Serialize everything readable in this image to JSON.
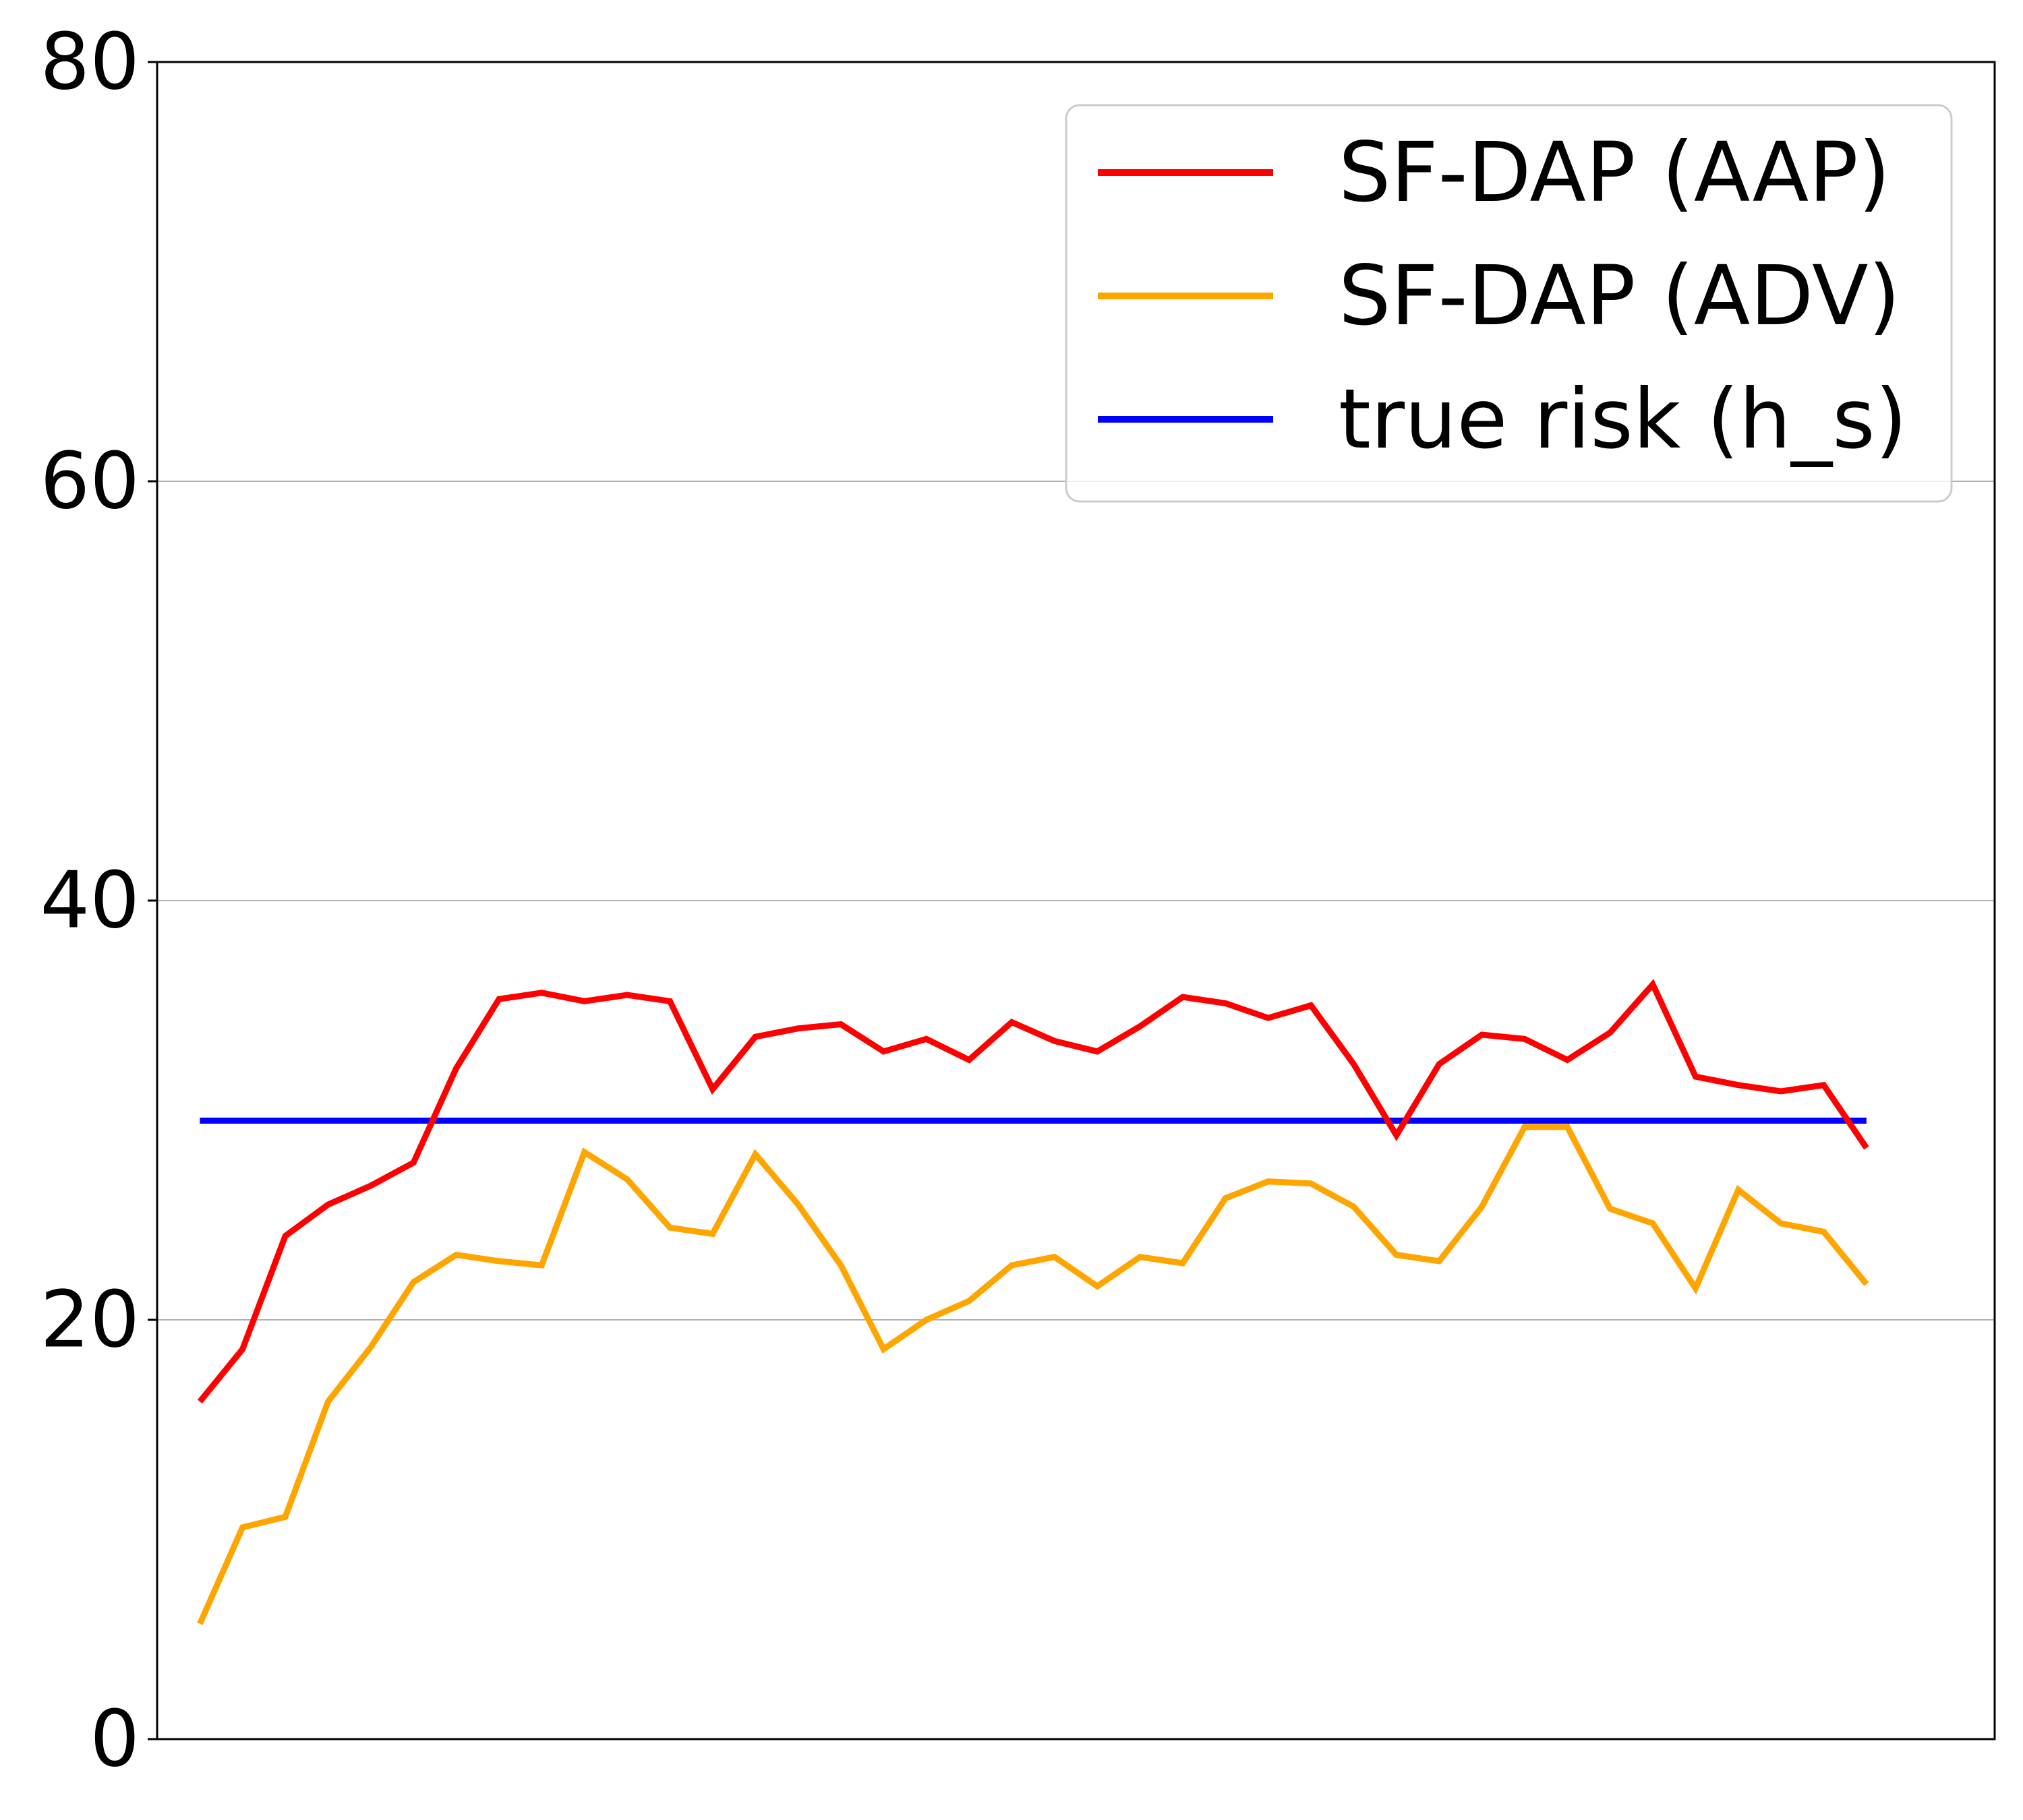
{
  "chart_data": {
    "type": "line",
    "title": "",
    "xlabel": "",
    "ylabel": "",
    "ylim": [
      0,
      80
    ],
    "yticks": [
      0,
      20,
      40,
      60,
      80
    ],
    "xlim": [
      -1,
      42
    ],
    "grid": "horizontal",
    "legend_position": "top-right",
    "x": [
      0,
      1,
      2,
      3,
      4,
      5,
      6,
      7,
      8,
      9,
      10,
      11,
      12,
      13,
      14,
      15,
      16,
      17,
      18,
      19,
      20,
      21,
      22,
      23,
      24,
      25,
      26,
      27,
      28,
      29,
      30,
      31,
      32,
      33,
      34,
      35,
      36,
      37,
      38,
      39
    ],
    "series": [
      {
        "name": "SF-DAP (AAP)",
        "color": "#ff0000",
        "values": [
          16.1,
          18.6,
          24.0,
          25.5,
          26.4,
          27.5,
          32.0,
          35.3,
          35.6,
          35.2,
          35.5,
          35.2,
          31.0,
          33.5,
          33.9,
          34.1,
          32.8,
          33.4,
          32.4,
          34.2,
          33.3,
          32.8,
          34.0,
          35.4,
          35.1,
          34.4,
          35.0,
          32.2,
          28.8,
          32.2,
          33.6,
          33.4,
          32.4,
          33.7,
          36.0,
          31.6,
          31.2,
          30.9,
          31.2,
          28.2
        ],
        "line_width": 9
      },
      {
        "name": "SF-DAP (ADV)",
        "color": "#ffa500",
        "values": [
          5.5,
          10.1,
          10.6,
          16.1,
          18.7,
          21.8,
          23.1,
          22.8,
          22.6,
          28.0,
          26.7,
          24.4,
          24.1,
          27.9,
          25.5,
          22.6,
          18.6,
          20.0,
          20.9,
          22.6,
          23.0,
          21.6,
          23.0,
          22.7,
          25.8,
          26.6,
          26.5,
          25.4,
          23.1,
          22.8,
          25.4,
          29.2,
          29.2,
          25.3,
          24.6,
          21.5,
          26.2,
          24.6,
          24.2,
          21.7
        ],
        "line_width": 9
      },
      {
        "name": "true risk (h_s)",
        "color": "#0000ff",
        "values": [
          29.5,
          29.5,
          29.5,
          29.5,
          29.5,
          29.5,
          29.5,
          29.5,
          29.5,
          29.5,
          29.5,
          29.5,
          29.5,
          29.5,
          29.5,
          29.5,
          29.5,
          29.5,
          29.5,
          29.5,
          29.5,
          29.5,
          29.5,
          29.5,
          29.5,
          29.5,
          29.5,
          29.5,
          29.5,
          29.5,
          29.5,
          29.5,
          29.5,
          29.5,
          29.5,
          29.5,
          29.5,
          29.5,
          29.5,
          29.5
        ],
        "line_width": 9
      }
    ]
  }
}
